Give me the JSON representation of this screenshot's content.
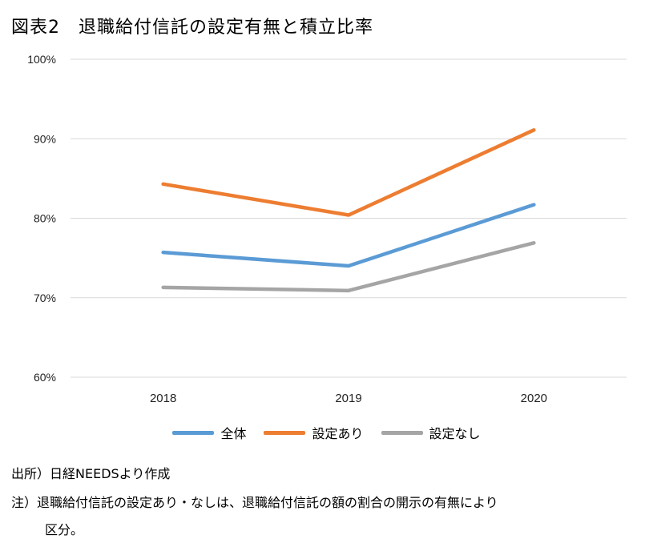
{
  "title": "図表2　退職給付信託の設定有無と積立比率",
  "chart_data": {
    "type": "line",
    "categories": [
      "2018",
      "2019",
      "2020"
    ],
    "series": [
      {
        "name": "全体",
        "color": "#5B9BD5",
        "values": [
          75.7,
          74.0,
          81.7
        ]
      },
      {
        "name": "設定あり",
        "color": "#ED7D31",
        "values": [
          84.3,
          80.4,
          91.1
        ]
      },
      {
        "name": "設定なし",
        "color": "#A5A5A5",
        "values": [
          71.3,
          70.9,
          76.9
        ]
      }
    ],
    "y_ticks": [
      "60%",
      "70%",
      "80%",
      "90%",
      "100%"
    ],
    "y_tick_values": [
      60,
      70,
      80,
      90,
      100
    ],
    "ylim": [
      60,
      100
    ],
    "grid": true,
    "legend_position": "bottom"
  },
  "notes": {
    "source": "出所）日経NEEDSより作成",
    "note_line1": "注）退職給付信託の設定あり・なしは、退職給付信託の額の割合の開示の有無により",
    "note_line2": "区分。"
  }
}
